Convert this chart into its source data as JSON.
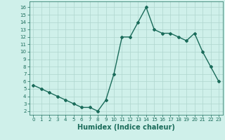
{
  "x": [
    0,
    1,
    2,
    3,
    4,
    5,
    6,
    7,
    8,
    9,
    10,
    11,
    12,
    13,
    14,
    15,
    16,
    17,
    18,
    19,
    20,
    21,
    22,
    23
  ],
  "y": [
    5.5,
    5.0,
    4.5,
    4.0,
    3.5,
    3.0,
    2.5,
    2.5,
    2.0,
    3.5,
    7.0,
    12.0,
    12.0,
    14.0,
    16.0,
    13.0,
    12.5,
    12.5,
    12.0,
    11.5,
    12.5,
    10.0,
    8.0,
    6.0
  ],
  "line_color": "#1a6b5a",
  "marker": "D",
  "marker_size": 2.0,
  "bg_color": "#cff0ea",
  "grid_color": "#aed6ce",
  "xlabel": "Humidex (Indice chaleur)",
  "xlim": [
    -0.5,
    23.5
  ],
  "ylim": [
    1.5,
    16.8
  ],
  "xticks": [
    0,
    1,
    2,
    3,
    4,
    5,
    6,
    7,
    8,
    9,
    10,
    11,
    12,
    13,
    14,
    15,
    16,
    17,
    18,
    19,
    20,
    21,
    22,
    23
  ],
  "yticks": [
    2,
    3,
    4,
    5,
    6,
    7,
    8,
    9,
    10,
    11,
    12,
    13,
    14,
    15,
    16
  ],
  "tick_fontsize": 5.0,
  "xlabel_fontsize": 7.0,
  "line_width": 1.0
}
